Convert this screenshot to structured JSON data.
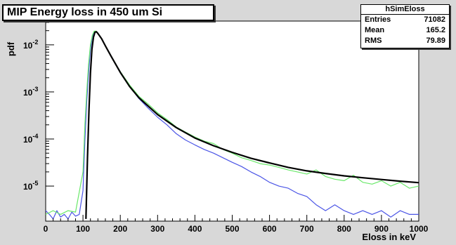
{
  "chart_data": {
    "type": "line",
    "title": "MIP Energy loss in 450 um Si",
    "xlabel": "Eloss in keV",
    "ylabel": "pdf",
    "xlim": [
      0,
      1000
    ],
    "ylim": [
      1.8e-06,
      0.032
    ],
    "yscale": "log",
    "x_ticks": [
      0,
      100,
      200,
      300,
      400,
      500,
      600,
      700,
      800,
      900,
      1000
    ],
    "y_ticks": [
      {
        "value": 0.01,
        "base": "10",
        "exp": "-2"
      },
      {
        "value": 0.001,
        "base": "10",
        "exp": "-3"
      },
      {
        "value": 0.0001,
        "base": "10",
        "exp": "-4"
      },
      {
        "value": 1e-05,
        "base": "10",
        "exp": "-5"
      }
    ],
    "grid": false,
    "legend": "none",
    "stats": {
      "name": "hSimEloss",
      "rows": [
        {
          "label": "Entries",
          "value": "71082"
        },
        {
          "label": "Mean",
          "value": "165.2"
        },
        {
          "label": "RMS",
          "value": "79.89"
        }
      ]
    },
    "series": [
      {
        "color": "#000000",
        "x": [
          108,
          112,
          116,
          120,
          124,
          128,
          132,
          136,
          140,
          150,
          160,
          175,
          200,
          225,
          250,
          300,
          350,
          400,
          450,
          500,
          550,
          600,
          650,
          700,
          750,
          800,
          850,
          900,
          950,
          1000
        ],
        "y": [
          2e-06,
          4e-05,
          0.0004,
          0.0025,
          0.008,
          0.0145,
          0.0185,
          0.019,
          0.0175,
          0.0135,
          0.0095,
          0.0058,
          0.0026,
          0.0013,
          0.00075,
          0.00033,
          0.000175,
          0.000105,
          7.2e-05,
          5.2e-05,
          3.9e-05,
          3.1e-05,
          2.5e-05,
          2.1e-05,
          1.85e-05,
          1.65e-05,
          1.5e-05,
          1.38e-05,
          1.27e-05,
          1.18e-05
        ]
      },
      {
        "color": "#4b55e6",
        "x": [
          0,
          10,
          20,
          30,
          40,
          50,
          60,
          70,
          80,
          90,
          100,
          105,
          110,
          115,
          120,
          125,
          130,
          135,
          140,
          150,
          160,
          175,
          200,
          225,
          250,
          275,
          300,
          325,
          350,
          375,
          400,
          425,
          450,
          475,
          500,
          525,
          550,
          575,
          600,
          625,
          650,
          675,
          700,
          725,
          750,
          775,
          800,
          825,
          850,
          875,
          900,
          925,
          950,
          975,
          1000
        ],
        "y": [
          3e-06,
          2.5e-06,
          2e-06,
          3e-06,
          2.2e-06,
          2.5e-06,
          2e-06,
          2.8e-06,
          2.3e-06,
          2.5e-06,
          8e-06,
          9e-05,
          0.0006,
          0.0025,
          0.008,
          0.015,
          0.019,
          0.019,
          0.0175,
          0.0135,
          0.0095,
          0.0058,
          0.0027,
          0.0013,
          0.00072,
          0.00045,
          0.00029,
          0.0002,
          0.00013,
          9.5e-05,
          7.5e-05,
          6e-05,
          5e-05,
          4e-05,
          3.2e-05,
          2.6e-05,
          2e-05,
          1.6e-05,
          1.2e-05,
          1e-05,
          9e-06,
          7e-06,
          6e-06,
          4e-06,
          3e-06,
          4e-06,
          3e-06,
          2.5e-06,
          3e-06,
          2.5e-06,
          3e-06,
          2.2e-06,
          3e-06,
          2.5e-06,
          2.5e-06
        ]
      },
      {
        "color": "#6ae86a",
        "x": [
          0,
          20,
          40,
          60,
          80,
          100,
          105,
          110,
          115,
          120,
          125,
          130,
          135,
          140,
          150,
          160,
          175,
          200,
          225,
          250,
          275,
          300,
          325,
          350,
          375,
          400,
          425,
          450,
          475,
          500,
          525,
          550,
          575,
          600,
          625,
          650,
          675,
          700,
          725,
          750,
          775,
          800,
          825,
          850,
          875,
          900,
          925,
          950,
          975,
          1000
        ],
        "y": [
          2.5e-06,
          3e-06,
          2.5e-06,
          3e-06,
          2.8e-06,
          2e-05,
          0.0002,
          0.001,
          0.004,
          0.01,
          0.016,
          0.0195,
          0.0195,
          0.018,
          0.0135,
          0.0095,
          0.0058,
          0.0027,
          0.0014,
          0.0008,
          0.00055,
          0.00036,
          0.00026,
          0.00018,
          0.00014,
          0.00011,
          9e-05,
          8e-05,
          6e-05,
          5e-05,
          4e-05,
          3.5e-05,
          3e-05,
          2.8e-05,
          2.5e-05,
          2.2e-05,
          2e-05,
          1.8e-05,
          2.2e-05,
          1.6e-05,
          1.4e-05,
          1.3e-05,
          1.7e-05,
          1.2e-05,
          1.1e-05,
          1.3e-05,
          1e-05,
          1.2e-05,
          9e-06,
          1e-05
        ]
      }
    ]
  }
}
